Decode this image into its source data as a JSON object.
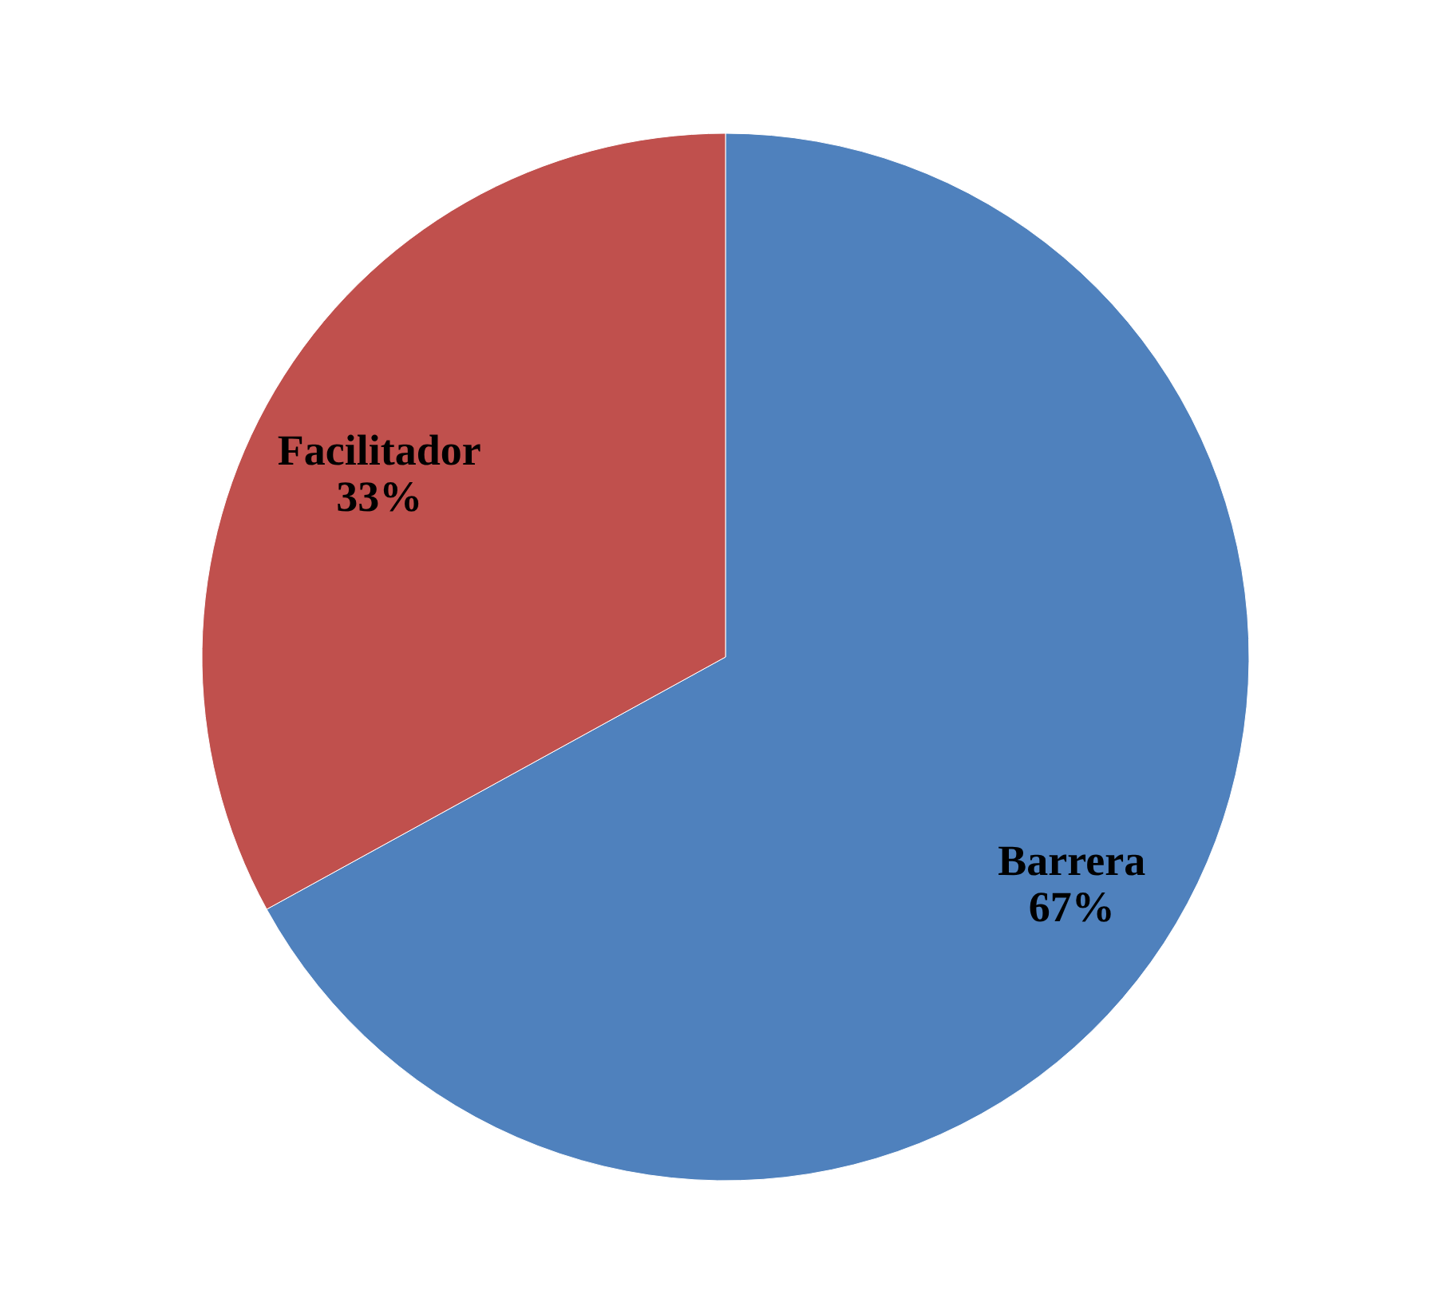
{
  "chart_data": {
    "type": "pie",
    "categories": [
      "Barrera",
      "Facilitador"
    ],
    "values": [
      67,
      33
    ],
    "colors": [
      "#4f81bd",
      "#c0504d"
    ],
    "value_labels": [
      "67%",
      "33%"
    ],
    "legend": false
  }
}
